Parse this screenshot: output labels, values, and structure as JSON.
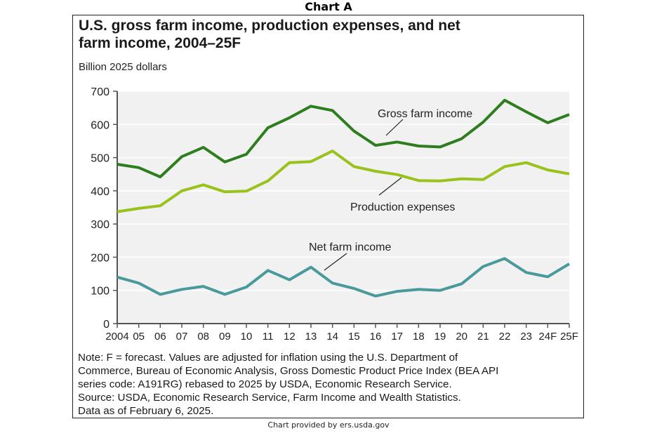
{
  "header": {
    "label": "Chart A"
  },
  "footer": {
    "credit": "Chart provided by ers.usda.gov"
  },
  "note_lines": [
    "Note: F = forecast. Values are adjusted for inflation using the U.S. Department of",
    "Commerce, Bureau of Economic Analysis, Gross Domestic Product Price Index (BEA API",
    "series code: A191RG) rebased to 2025 by USDA, Economic Research Service.",
    "Source: USDA, Economic Research Service, Farm Income and Wealth Statistics.",
    "Data as of February 6, 2025."
  ],
  "chart_data": {
    "type": "line",
    "title_lines": [
      "U.S. gross farm income, production expenses, and net",
      "farm income, 2004–25F"
    ],
    "ylabel": "Billion 2025 dollars",
    "xlabel": "",
    "ylim": [
      0,
      700
    ],
    "yticks": [
      0,
      100,
      200,
      300,
      400,
      500,
      600,
      700
    ],
    "grid": true,
    "categories": [
      "2004",
      "05",
      "06",
      "07",
      "08",
      "09",
      "10",
      "11",
      "12",
      "13",
      "14",
      "15",
      "16",
      "17",
      "18",
      "19",
      "20",
      "21",
      "22",
      "23",
      "24F",
      "25F"
    ],
    "series": [
      {
        "name": "Gross farm income",
        "color": "#2e7d1e",
        "values": [
          480,
          470,
          442,
          503,
          531,
          487,
          510,
          590,
          620,
          655,
          642,
          580,
          537,
          547,
          535,
          532,
          557,
          607,
          673,
          638,
          605,
          630
        ]
      },
      {
        "name": "Production expenses",
        "color": "#9ac21c",
        "values": [
          337,
          347,
          355,
          400,
          418,
          397,
          399,
          430,
          485,
          488,
          520,
          473,
          459,
          449,
          431,
          430,
          436,
          434,
          473,
          485,
          463,
          451
        ]
      },
      {
        "name": "Net farm income",
        "color": "#4a9a9c",
        "values": [
          140,
          122,
          88,
          103,
          112,
          88,
          110,
          160,
          132,
          170,
          122,
          106,
          83,
          97,
          103,
          100,
          120,
          172,
          196,
          154,
          141,
          180
        ]
      }
    ],
    "annotations": [
      {
        "text": "Gross farm income",
        "series": "Gross farm income",
        "at": "17"
      },
      {
        "text": "Production expenses",
        "series": "Production expenses",
        "at": "17"
      },
      {
        "text": "Net farm income",
        "series": "Net farm income",
        "at": "13"
      }
    ]
  }
}
